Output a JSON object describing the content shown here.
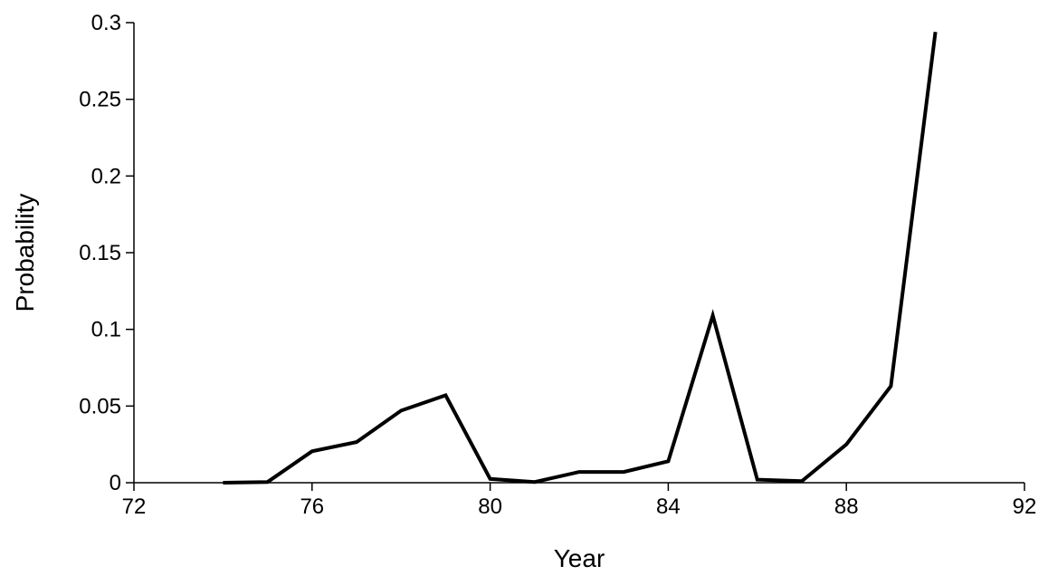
{
  "chart_data": {
    "type": "line",
    "title": "",
    "xlabel": "Year",
    "ylabel": "Probability",
    "xlim": [
      72,
      92
    ],
    "ylim": [
      0,
      0.3
    ],
    "xticks": [
      72,
      76,
      80,
      84,
      88,
      92
    ],
    "xtick_labels": [
      "72",
      "76",
      "80",
      "84",
      "88",
      "92"
    ],
    "yticks": [
      0,
      0.05,
      0.1,
      0.15,
      0.2,
      0.25,
      0.3
    ],
    "ytick_labels": [
      "0",
      "0.05",
      "0.1",
      "0.15",
      "0.2",
      "0.25",
      "0.3"
    ],
    "grid": false,
    "legend": "none",
    "series": [
      {
        "color": "#000000",
        "x": [
          74,
          75,
          76,
          77,
          78,
          79,
          80,
          81,
          82,
          83,
          84,
          85,
          86,
          87,
          88,
          89,
          90
        ],
        "y": [
          0.0,
          0.0005,
          0.0205,
          0.0265,
          0.047,
          0.057,
          0.0025,
          0.0005,
          0.007,
          0.007,
          0.014,
          0.109,
          0.002,
          0.001,
          0.025,
          0.063,
          0.294
        ]
      }
    ]
  }
}
